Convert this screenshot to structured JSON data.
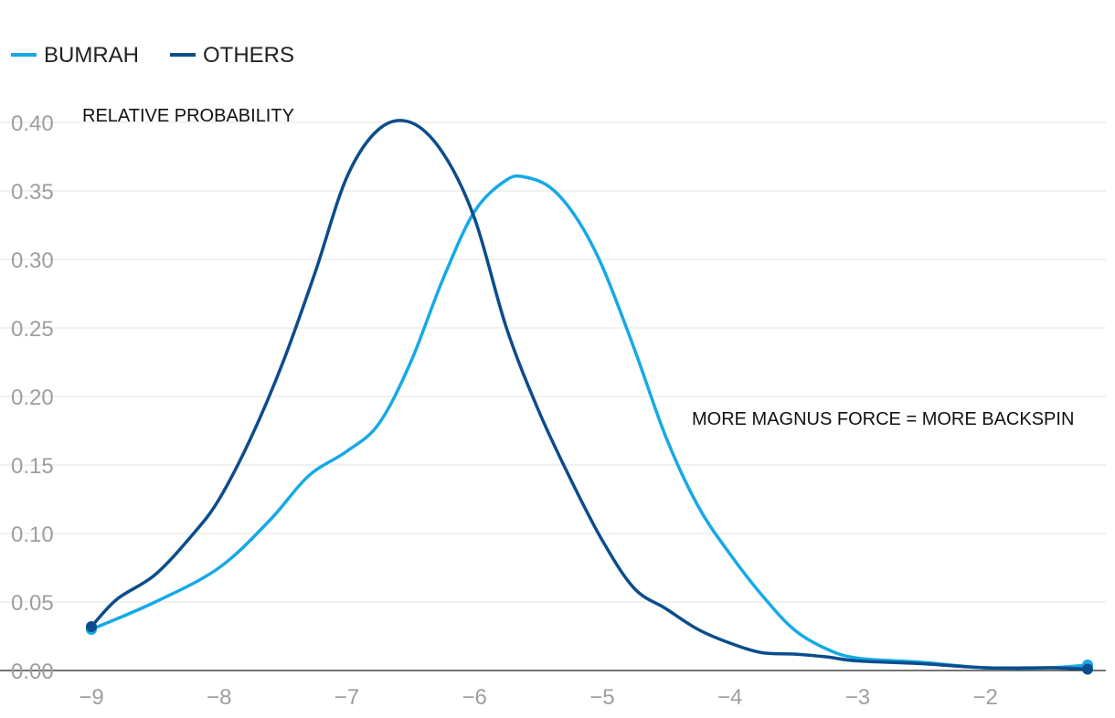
{
  "chart_data": {
    "type": "line",
    "title": "",
    "ylabel": "RELATIVE PROBABILITY",
    "xlabel": "",
    "annotation": "MORE MAGNUS FORCE = MORE BACKSPIN",
    "xlim": [
      -9,
      -1.2
    ],
    "ylim": [
      0,
      0.4
    ],
    "x_ticks": [
      -9,
      -8,
      -7,
      -6,
      -5,
      -4,
      -3,
      -2
    ],
    "x_tick_labels": [
      "−9",
      "−8",
      "−7",
      "−6",
      "−5",
      "−4",
      "−3",
      "−2"
    ],
    "y_ticks": [
      0,
      0.05,
      0.1,
      0.15,
      0.2,
      0.25,
      0.3,
      0.35,
      0.4
    ],
    "y_tick_labels": [
      "0.00",
      "0.05",
      "0.10",
      "0.15",
      "0.20",
      "0.25",
      "0.30",
      "0.35",
      "0.40"
    ],
    "legend_position": "top-left",
    "grid": true,
    "series": [
      {
        "name": "BUMRAH",
        "color": "#16a9e8",
        "x": [
          -9,
          -8.5,
          -8,
          -7.6,
          -7.3,
          -7,
          -6.75,
          -6.5,
          -6.25,
          -6,
          -5.75,
          -5.6,
          -5.4,
          -5.2,
          -5,
          -4.75,
          -4.5,
          -4.25,
          -4,
          -3.75,
          -3.5,
          -3.25,
          -3,
          -2.5,
          -2,
          -1.5,
          -1.2
        ],
        "values": [
          0.03,
          0.05,
          0.075,
          0.11,
          0.142,
          0.16,
          0.18,
          0.225,
          0.285,
          0.335,
          0.358,
          0.36,
          0.352,
          0.33,
          0.295,
          0.235,
          0.17,
          0.12,
          0.085,
          0.055,
          0.03,
          0.016,
          0.009,
          0.006,
          0.002,
          0.002,
          0.004
        ]
      },
      {
        "name": "OTHERS",
        "color": "#0b4d8c",
        "x": [
          -9,
          -8.8,
          -8.5,
          -8.2,
          -8,
          -7.75,
          -7.5,
          -7.25,
          -7,
          -6.75,
          -6.5,
          -6.25,
          -6,
          -5.75,
          -5.5,
          -5.25,
          -5,
          -4.75,
          -4.5,
          -4.25,
          -4,
          -3.75,
          -3.5,
          -3.25,
          -3,
          -2.5,
          -2,
          -1.5,
          -1.2
        ],
        "values": [
          0.032,
          0.052,
          0.07,
          0.1,
          0.125,
          0.17,
          0.225,
          0.29,
          0.36,
          0.395,
          0.4,
          0.378,
          0.33,
          0.25,
          0.19,
          0.14,
          0.095,
          0.06,
          0.045,
          0.03,
          0.02,
          0.013,
          0.012,
          0.01,
          0.007,
          0.005,
          0.002,
          0.002,
          0.001
        ]
      }
    ]
  }
}
